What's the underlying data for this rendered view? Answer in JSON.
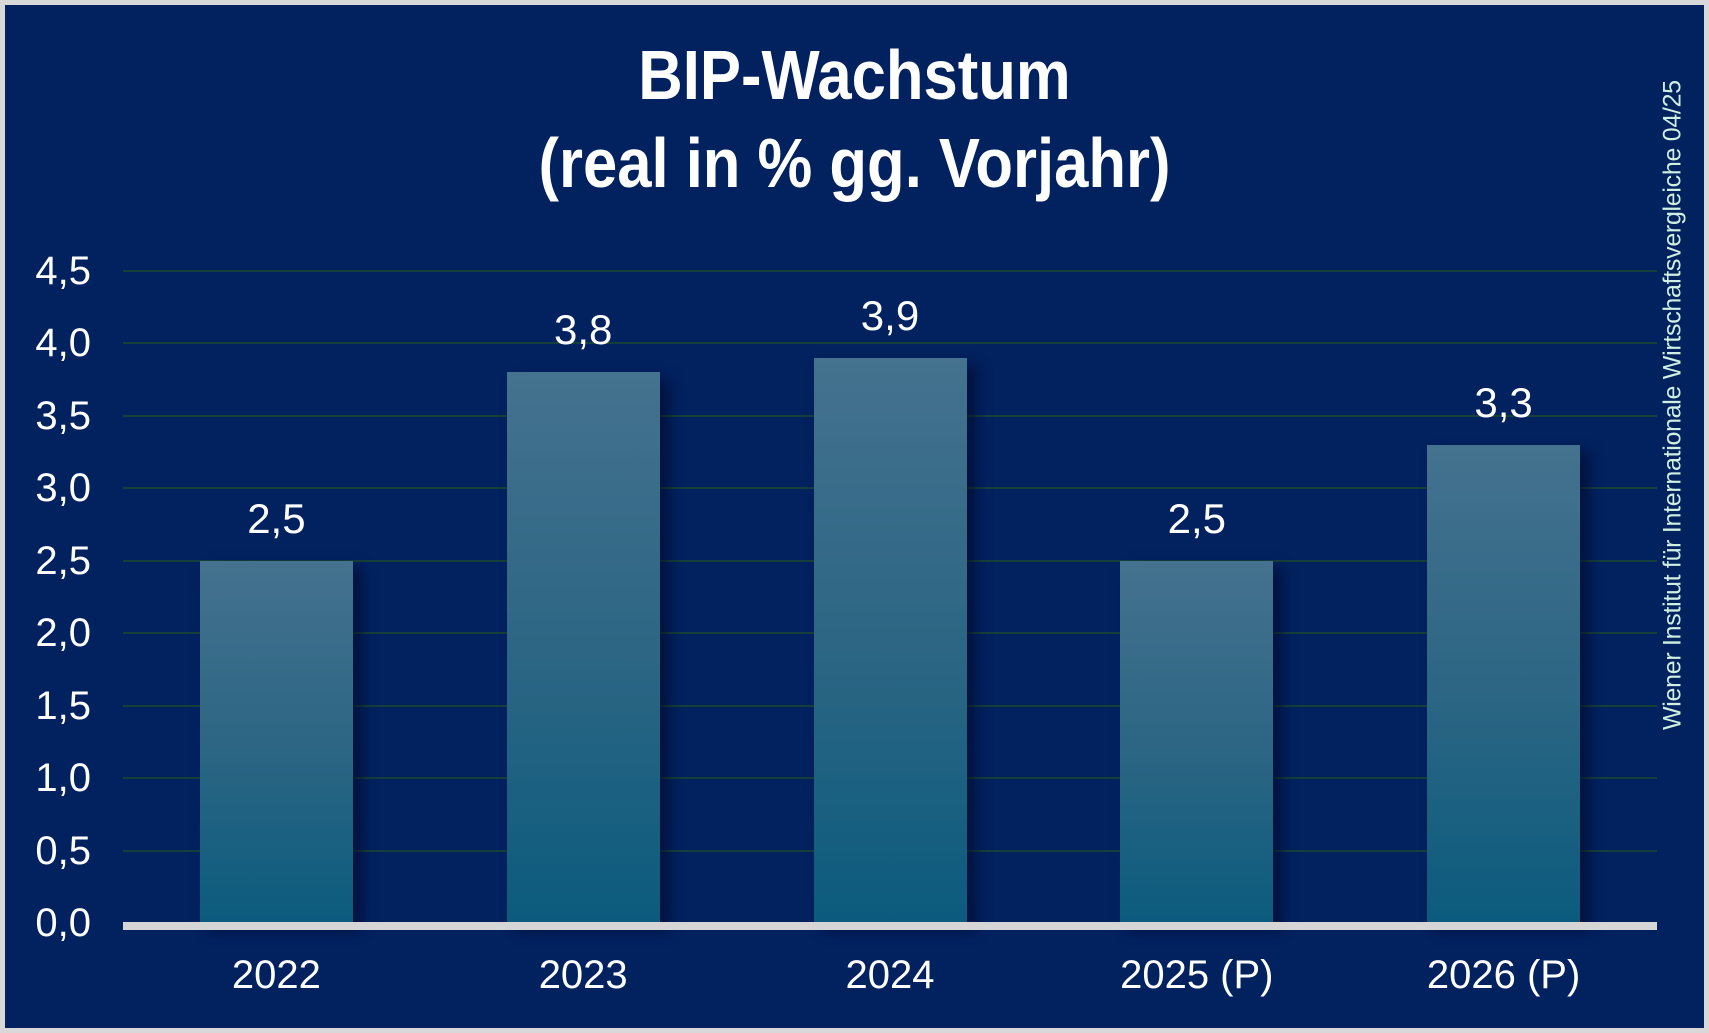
{
  "frame": {
    "background": "#02215F",
    "border_color": "#D8D8D8"
  },
  "chart_data": {
    "type": "bar",
    "title_line1": "BIP-Wachstum",
    "title_line2": "(real in % gg. Vorjahr)",
    "categories": [
      "2022",
      "2023",
      "2024",
      "2025 (P)",
      "2026 (P)"
    ],
    "values": [
      2.5,
      3.8,
      3.9,
      2.5,
      3.3
    ],
    "value_labels": [
      "2,5",
      "3,8",
      "3,9",
      "2,5",
      "3,3"
    ],
    "y_ticks": {
      "values": [
        0,
        0.5,
        1,
        1.5,
        2,
        2.5,
        3,
        3.5,
        4,
        4.5
      ],
      "labels": [
        "0,0",
        "0,5",
        "1,0",
        "1,5",
        "2,0",
        "2,5",
        "3,0",
        "3,5",
        "4,0",
        "4,5"
      ]
    },
    "ylim": [
      0,
      4.5
    ],
    "grid": true,
    "legend": "none",
    "decimal_separator": ",",
    "source": "Wiener Institut für Internationale Wirtschaftsvergleiche 04/25",
    "colors": {
      "background": "#02215F",
      "bar_gradient_top": "#44728F",
      "bar_gradient_bottom": "#0B5B7E",
      "axis_line": "#D6D6D6",
      "gridline": "#153F3A",
      "text": "#FFFFFF",
      "source_text": "#CFEFE1"
    }
  }
}
